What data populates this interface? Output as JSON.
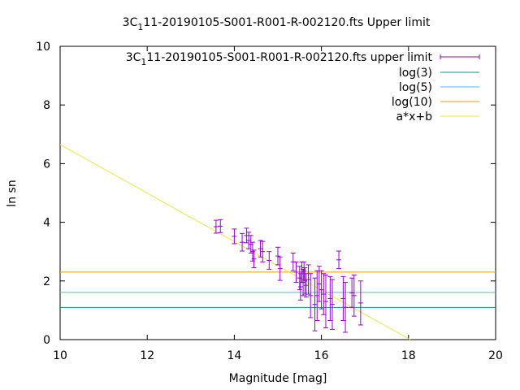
{
  "chart_data": {
    "type": "scatter",
    "title_parts": [
      "3C",
      "1",
      "11-20190105-S001-R001-R-002120.fts Upper limit"
    ],
    "xlabel": "Magnitude [mag]",
    "ylabel": "ln sn",
    "xlim": [
      10,
      20
    ],
    "ylim": [
      0,
      10
    ],
    "xticks": [
      10,
      12,
      14,
      16,
      18,
      20
    ],
    "yticks": [
      0,
      2,
      4,
      6,
      8,
      10
    ],
    "grid": false,
    "legend_position": "top-right",
    "series": [
      {
        "name_parts": [
          "3C",
          "1",
          "11-20190105-S001-R001-R-002120.fts upper limit"
        ],
        "kind": "errorbar",
        "color": "#9400d3",
        "points": [
          {
            "x": 13.58,
            "y": 3.85,
            "err": 0.22
          },
          {
            "x": 13.68,
            "y": 3.87,
            "err": 0.22
          },
          {
            "x": 14.0,
            "y": 3.52,
            "err": 0.25
          },
          {
            "x": 14.18,
            "y": 3.32,
            "err": 0.3
          },
          {
            "x": 14.28,
            "y": 3.55,
            "err": 0.25
          },
          {
            "x": 14.33,
            "y": 3.38,
            "err": 0.28
          },
          {
            "x": 14.38,
            "y": 3.25,
            "err": 0.3
          },
          {
            "x": 14.42,
            "y": 3.0,
            "err": 0.32
          },
          {
            "x": 14.45,
            "y": 2.75,
            "err": 0.3
          },
          {
            "x": 14.6,
            "y": 3.1,
            "err": 0.28
          },
          {
            "x": 14.65,
            "y": 3.0,
            "err": 0.35
          },
          {
            "x": 14.8,
            "y": 2.7,
            "err": 0.3
          },
          {
            "x": 15.0,
            "y": 2.85,
            "err": 0.3
          },
          {
            "x": 15.05,
            "y": 2.42,
            "err": 0.4
          },
          {
            "x": 15.35,
            "y": 2.65,
            "err": 0.3
          },
          {
            "x": 15.42,
            "y": 2.3,
            "err": 0.35
          },
          {
            "x": 15.5,
            "y": 2.1,
            "err": 0.4
          },
          {
            "x": 15.52,
            "y": 1.8,
            "err": 0.45
          },
          {
            "x": 15.55,
            "y": 2.3,
            "err": 0.35
          },
          {
            "x": 15.58,
            "y": 1.95,
            "err": 0.45
          },
          {
            "x": 15.6,
            "y": 2.35,
            "err": 0.3
          },
          {
            "x": 15.62,
            "y": 2.0,
            "err": 0.45
          },
          {
            "x": 15.65,
            "y": 1.85,
            "err": 0.4
          },
          {
            "x": 15.7,
            "y": 2.05,
            "err": 0.5
          },
          {
            "x": 15.75,
            "y": 1.5,
            "err": 0.75
          },
          {
            "x": 15.85,
            "y": 1.2,
            "err": 0.9
          },
          {
            "x": 15.9,
            "y": 1.5,
            "err": 0.85
          },
          {
            "x": 15.95,
            "y": 1.9,
            "err": 0.6
          },
          {
            "x": 16.0,
            "y": 1.7,
            "err": 0.65
          },
          {
            "x": 16.05,
            "y": 1.55,
            "err": 0.7
          },
          {
            "x": 16.1,
            "y": 1.3,
            "err": 0.9
          },
          {
            "x": 16.2,
            "y": 1.4,
            "err": 0.75
          },
          {
            "x": 16.25,
            "y": 1.2,
            "err": 0.85
          },
          {
            "x": 16.4,
            "y": 2.72,
            "err": 0.3
          },
          {
            "x": 16.5,
            "y": 1.4,
            "err": 0.75
          },
          {
            "x": 16.55,
            "y": 1.1,
            "err": 0.85
          },
          {
            "x": 16.7,
            "y": 1.6,
            "err": 0.5
          },
          {
            "x": 16.75,
            "y": 1.5,
            "err": 0.7
          },
          {
            "x": 16.9,
            "y": 1.25,
            "err": 0.75
          }
        ]
      },
      {
        "name": "log(3)",
        "kind": "hline",
        "y": 1.0986,
        "color": "#009e73"
      },
      {
        "name": "log(5)",
        "kind": "hline",
        "y": 1.6094,
        "color": "#56b4e9"
      },
      {
        "name": "log(10)",
        "kind": "hline",
        "y": 2.3026,
        "color": "#e69f00"
      },
      {
        "name": "a*x+b",
        "kind": "line",
        "color": "#f0e442",
        "points": [
          [
            10,
            6.65
          ],
          [
            18.04,
            0
          ]
        ]
      }
    ]
  }
}
